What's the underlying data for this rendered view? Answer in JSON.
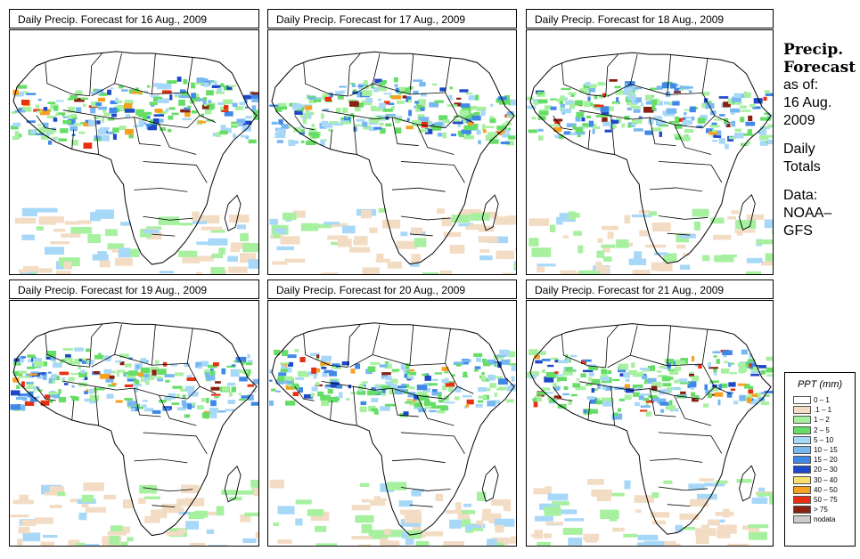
{
  "panels": [
    {
      "title": "Daily Precip. Forecast for  16 Aug., 2009"
    },
    {
      "title": "Daily Precip. Forecast for  17 Aug., 2009"
    },
    {
      "title": "Daily Precip. Forecast for  18 Aug., 2009"
    },
    {
      "title": "Daily Precip. Forecast for  19 Aug., 2009"
    },
    {
      "title": "Daily Precip. Forecast for  20 Aug., 2009"
    },
    {
      "title": "Daily Precip. Forecast for  21 Aug., 2009"
    }
  ],
  "side": {
    "title1": "Precip.",
    "title2": "Forecast",
    "asof": "as of:",
    "date1": "16 Aug.",
    "date2": "2009",
    "daily1": "Daily",
    "daily2": "Totals",
    "data1": "Data:",
    "data2": "NOAA–",
    "data3": "GFS"
  },
  "legend": {
    "title": "PPT (mm)",
    "items": [
      {
        "label": "0 – 1",
        "color": "#ffffff"
      },
      {
        "label": ".1 – 1",
        "color": "#f3dcc4"
      },
      {
        "label": "1 – 2",
        "color": "#a6f0a0"
      },
      {
        "label": "2 – 5",
        "color": "#66dd66"
      },
      {
        "label": "5 – 10",
        "color": "#a8d8f8"
      },
      {
        "label": "10 – 15",
        "color": "#78b8f0"
      },
      {
        "label": "15 – 20",
        "color": "#3f88e8"
      },
      {
        "label": "20 – 30",
        "color": "#1e48c8"
      },
      {
        "label": "30 – 40",
        "color": "#f8e070"
      },
      {
        "label": "40 – 50",
        "color": "#f8a020"
      },
      {
        "label": "50 – 75",
        "color": "#e83010"
      },
      {
        "label": "> 75",
        "color": "#8a2010"
      },
      {
        "label": "nodata",
        "color": "#cccccc"
      }
    ]
  }
}
